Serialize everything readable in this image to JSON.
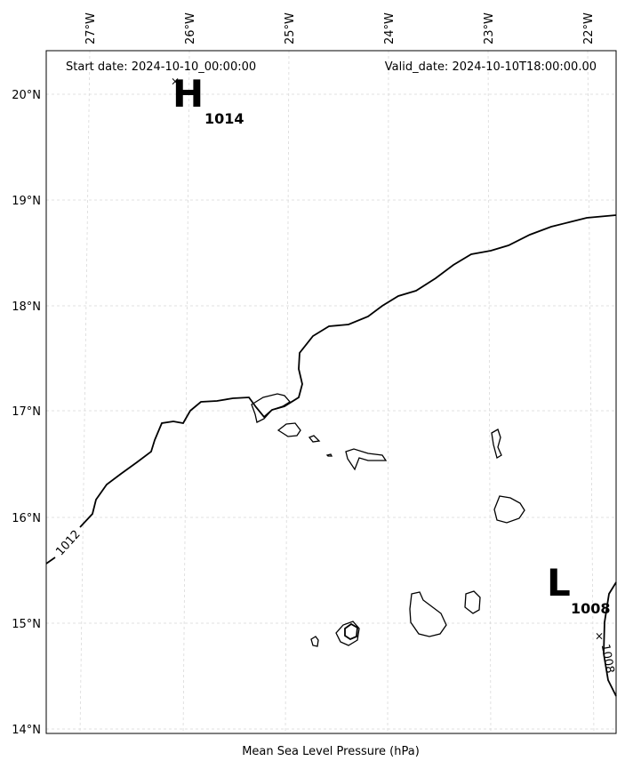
{
  "header": {
    "start_date": "Start date: 2024-10-10_00:00:00",
    "valid_date": "Valid_date: 2024-10-10T18:00:00.00"
  },
  "caption": "Mean Sea Level Pressure (hPa)",
  "axes": {
    "lon_ticks": [
      "27°W",
      "26°W",
      "25°W",
      "24°W",
      "23°W",
      "22°W"
    ],
    "lat_ticks": [
      "20°N",
      "19°N",
      "18°N",
      "17°N",
      "16°N",
      "15°N",
      "14°N"
    ]
  },
  "pressure_centers": [
    {
      "type_label": "H",
      "value": "1014"
    },
    {
      "type_label": "L",
      "value": "1008"
    }
  ],
  "contours": [
    {
      "label": "1012"
    },
    {
      "label": "1008"
    }
  ]
}
